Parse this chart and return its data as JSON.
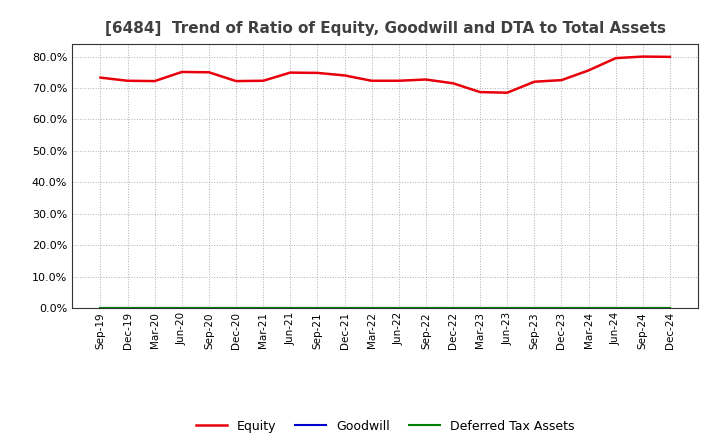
{
  "title": "[6484]  Trend of Ratio of Equity, Goodwill and DTA to Total Assets",
  "x_labels": [
    "Sep-19",
    "Dec-19",
    "Mar-20",
    "Jun-20",
    "Sep-20",
    "Dec-20",
    "Mar-21",
    "Jun-21",
    "Sep-21",
    "Dec-21",
    "Mar-22",
    "Jun-22",
    "Sep-22",
    "Dec-22",
    "Mar-23",
    "Jun-23",
    "Sep-23",
    "Dec-23",
    "Mar-24",
    "Jun-24",
    "Sep-24",
    "Dec-24"
  ],
  "equity": [
    0.733,
    0.723,
    0.722,
    0.751,
    0.75,
    0.722,
    0.723,
    0.749,
    0.748,
    0.74,
    0.723,
    0.723,
    0.727,
    0.715,
    0.687,
    0.685,
    0.72,
    0.725,
    0.756,
    0.795,
    0.8,
    0.799
  ],
  "goodwill": [
    0.0,
    0.0,
    0.0,
    0.0,
    0.0,
    0.0,
    0.0,
    0.0,
    0.0,
    0.0,
    0.0,
    0.0,
    0.0,
    0.0,
    0.0,
    0.0,
    0.0,
    0.0,
    0.0,
    0.0,
    0.0,
    0.0
  ],
  "dta": [
    0.0,
    0.0,
    0.0,
    0.0,
    0.0,
    0.0,
    0.0,
    0.0,
    0.0,
    0.0,
    0.0,
    0.0,
    0.0,
    0.0,
    0.0,
    0.0,
    0.0,
    0.0,
    0.0,
    0.0,
    0.0,
    0.0
  ],
  "equity_color": "#e8000d",
  "goodwill_color": "#0000cd",
  "dta_color": "#008000",
  "ylim": [
    0.0,
    0.84
  ],
  "yticks": [
    0.0,
    0.1,
    0.2,
    0.3,
    0.4,
    0.5,
    0.6,
    0.7,
    0.8
  ],
  "background_color": "#ffffff",
  "plot_bg_color": "#ffffff",
  "grid_color": "#b0b0b0",
  "title_fontsize": 11,
  "title_color": "#404040",
  "legend_labels": [
    "Equity",
    "Goodwill",
    "Deferred Tax Assets"
  ]
}
